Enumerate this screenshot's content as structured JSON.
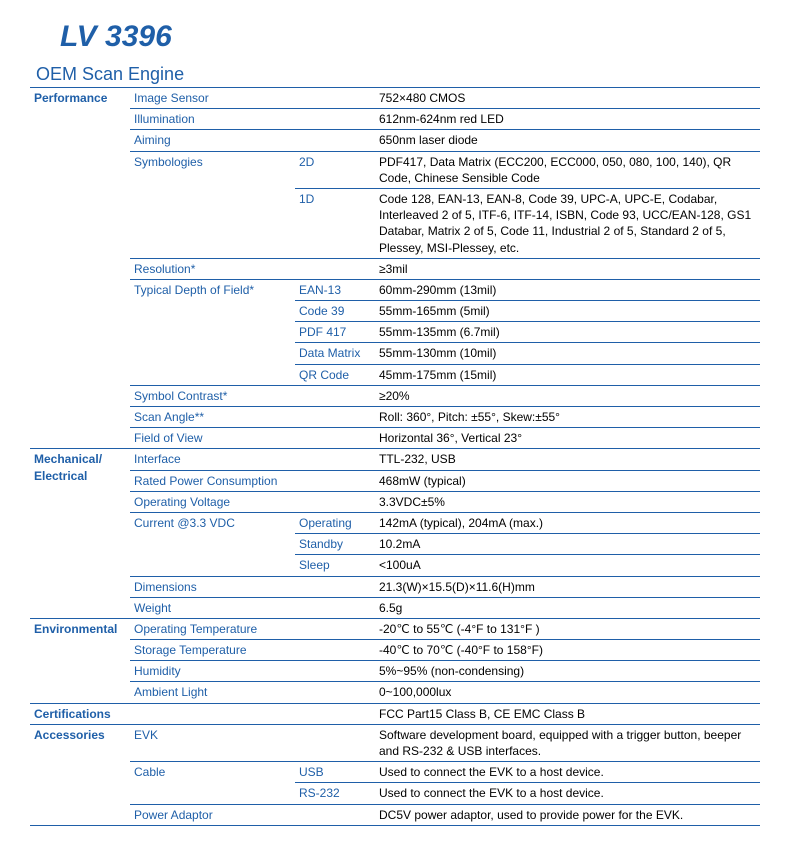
{
  "title": "LV 3396",
  "subtitle": "OEM Scan Engine",
  "colors": {
    "accent": "#1f5fa8",
    "text": "#000000",
    "bg": "#ffffff"
  },
  "fonts": {
    "title_size": 30,
    "subtitle_size": 18,
    "body_size": 12
  },
  "sections": {
    "performance": {
      "label": "Performance",
      "image_sensor": {
        "label": "Image Sensor",
        "value": "752×480 CMOS"
      },
      "illumination": {
        "label": "Illumination",
        "value": "612nm-624nm red LED"
      },
      "aiming": {
        "label": "Aiming",
        "value": "650nm laser diode"
      },
      "symbologies": {
        "label": "Symbologies",
        "d2": {
          "label": "2D",
          "value": "PDF417, Data Matrix (ECC200, ECC000, 050, 080, 100, 140), QR Code, Chinese Sensible Code"
        },
        "d1": {
          "label": "1D",
          "value": "Code 128, EAN-13, EAN-8, Code 39, UPC-A, UPC-E, Codabar, Interleaved 2 of 5, ITF-6, ITF-14, ISBN, Code 93, UCC/EAN-128, GS1 Databar, Matrix 2 of 5, Code 11, Industrial 2 of 5, Standard 2 of 5, Plessey, MSI-Plessey, etc."
        }
      },
      "resolution": {
        "label": "Resolution*",
        "value": "≥3mil"
      },
      "depth": {
        "label": "Typical Depth of Field*",
        "ean13": {
          "label": "EAN-13",
          "value": "60mm-290mm (13mil)"
        },
        "code39": {
          "label": "Code 39",
          "value": "55mm-165mm (5mil)"
        },
        "pdf417": {
          "label": "PDF 417",
          "value": "55mm-135mm (6.7mil)"
        },
        "datamatrix": {
          "label": "Data Matrix",
          "value": "55mm-130mm (10mil)"
        },
        "qr": {
          "label": "QR Code",
          "value": "45mm-175mm (15mil)"
        }
      },
      "contrast": {
        "label": "Symbol Contrast*",
        "value": "≥20%"
      },
      "scan_angle": {
        "label": "Scan Angle**",
        "value": "Roll: 360°,   Pitch: ±55°,   Skew:±55°"
      },
      "fov": {
        "label": "Field of View",
        "value": "Horizontal 36°,   Vertical 23°"
      }
    },
    "mechanical": {
      "label": "Mechanical/ Electrical",
      "interface": {
        "label": "Interface",
        "value": "TTL-232, USB"
      },
      "power": {
        "label": "Rated Power Consumption",
        "value": "468mW (typical)"
      },
      "voltage": {
        "label": "Operating Voltage",
        "value": "3.3VDC±5%"
      },
      "current": {
        "label": "Current @3.3 VDC",
        "operating": {
          "label": "Operating",
          "value": "142mA (typical), 204mA (max.)"
        },
        "standby": {
          "label": "Standby",
          "value": "10.2mA"
        },
        "sleep": {
          "label": "Sleep",
          "value": "<100uA"
        }
      },
      "dimensions": {
        "label": "Dimensions",
        "value": "21.3(W)×15.5(D)×11.6(H)mm"
      },
      "weight": {
        "label": "Weight",
        "value": "6.5g"
      }
    },
    "environmental": {
      "label": "Environmental",
      "op_temp": {
        "label": "Operating Temperature",
        "value": "-20℃ to 55℃ (-4°F to 131°F )"
      },
      "st_temp": {
        "label": "Storage Temperature",
        "value": "-40℃ to 70℃ (-40°F to 158°F)"
      },
      "humidity": {
        "label": "Humidity",
        "value": "5%~95% (non-condensing)"
      },
      "ambient": {
        "label": "Ambient Light",
        "value": "0~100,000lux"
      }
    },
    "certifications": {
      "label": "Certifications",
      "value": "FCC Part15 Class B, CE EMC Class B"
    },
    "accessories": {
      "label": "Accessories",
      "evk": {
        "label": "EVK",
        "value": "Software development board, equipped with a trigger button, beeper and RS-232 & USB interfaces."
      },
      "cable": {
        "label": "Cable",
        "usb": {
          "label": "USB",
          "value": "Used to connect the EVK to a host device."
        },
        "rs232": {
          "label": "RS-232",
          "value": "Used to connect the EVK to a host device."
        }
      },
      "adaptor": {
        "label": "Power Adaptor",
        "value": "DC5V power adaptor, used to provide power for the EVK."
      }
    }
  }
}
